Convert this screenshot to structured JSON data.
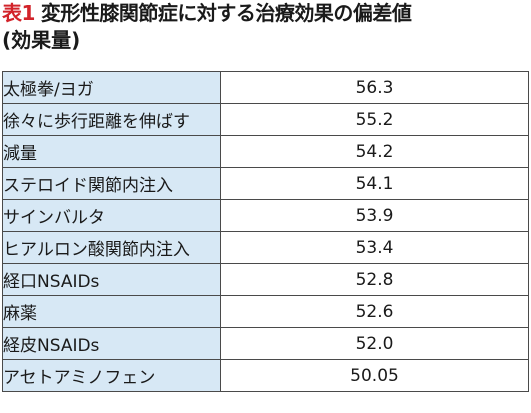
{
  "title": {
    "prefix": "表1",
    "main": "変形性膝関節症に対する治療効果の偏差値",
    "subtitle": "(効果量)"
  },
  "table": {
    "rows": [
      {
        "treatment": "太極拳/ヨガ",
        "value": "56.3"
      },
      {
        "treatment": "徐々に歩行距離を伸ばす",
        "value": "55.2"
      },
      {
        "treatment": "減量",
        "value": "54.2"
      },
      {
        "treatment": "ステロイド関節内注入",
        "value": "54.1"
      },
      {
        "treatment": "サインバルタ",
        "value": "53.9"
      },
      {
        "treatment": "ヒアルロン酸関節内注入",
        "value": "53.4"
      },
      {
        "treatment": "経口NSAIDs",
        "value": "52.8"
      },
      {
        "treatment": "麻薬",
        "value": "52.6"
      },
      {
        "treatment": "経皮NSAIDs",
        "value": "52.0"
      },
      {
        "treatment": "アセトアミノフェン",
        "value": "50.05"
      }
    ]
  },
  "colors": {
    "title_prefix": "#d2232a",
    "label_background": "#d7e8f5",
    "border": "#4a4a4a"
  }
}
